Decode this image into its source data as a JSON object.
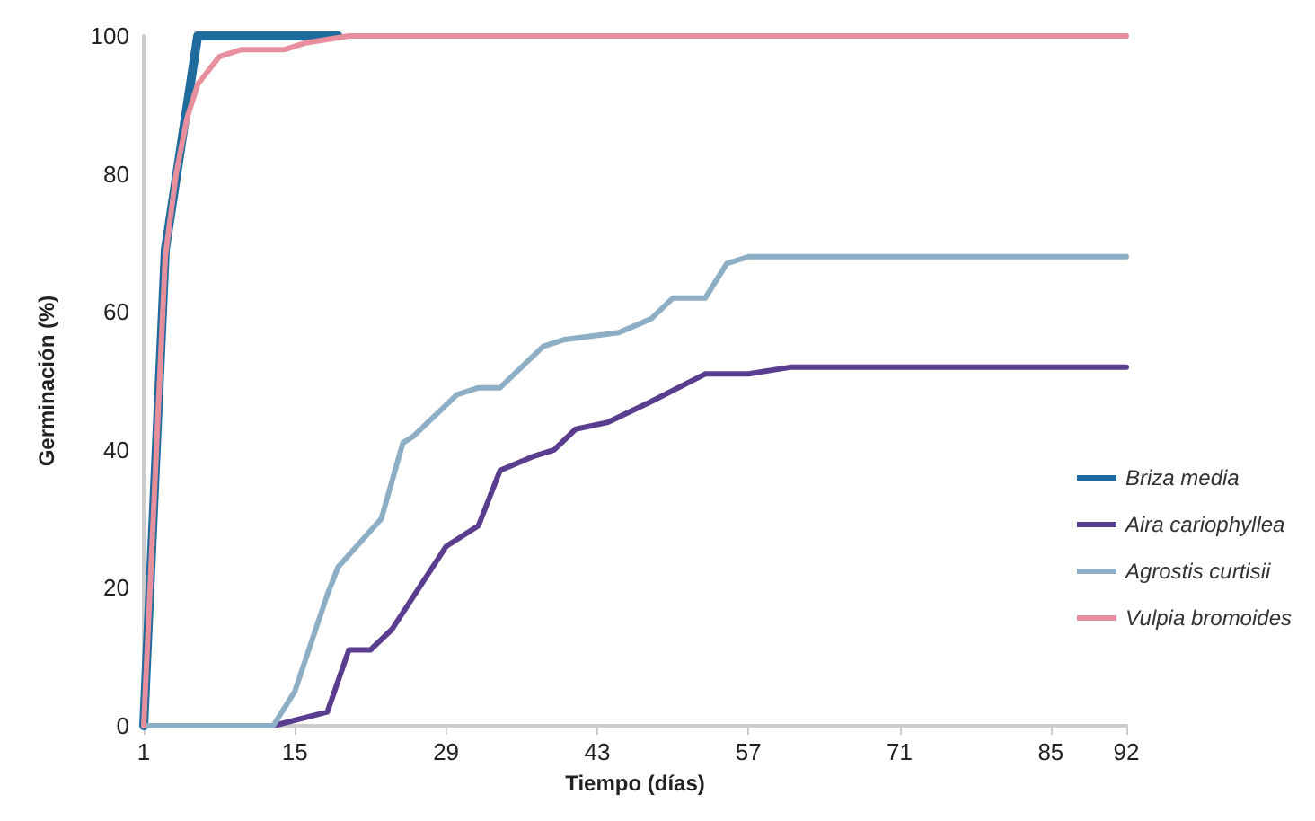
{
  "chart_data": {
    "type": "line",
    "xlabel": "Tiempo (días)",
    "ylabel": "Germinación (%)",
    "xlim": [
      1,
      92
    ],
    "xticks": [
      1,
      15,
      29,
      43,
      57,
      71,
      85,
      92
    ],
    "ylim": [
      0,
      100
    ],
    "yticks": [
      0,
      20,
      40,
      60,
      80,
      100
    ],
    "grid": false,
    "legend": "right",
    "marker": "none",
    "line_style": "solid",
    "series": [
      {
        "name": "Briza media",
        "color": "#1f6b9e",
        "x": [
          1,
          3,
          6,
          19
        ],
        "values": [
          0,
          69,
          100,
          100
        ]
      },
      {
        "name": "Aira cariophyllea",
        "color": "#5a3d8f",
        "x": [
          1,
          13,
          18,
          20,
          22,
          24,
          29,
          32,
          34,
          37,
          39,
          41,
          44,
          48,
          53,
          57,
          61,
          92
        ],
        "values": [
          0,
          0,
          2,
          11,
          11,
          14,
          26,
          29,
          37,
          39,
          40,
          43,
          44,
          47,
          51,
          51,
          52,
          52
        ]
      },
      {
        "name": "Agrostis curtisii",
        "color": "#8eaec6",
        "x": [
          1,
          13,
          15,
          18,
          19,
          23,
          25,
          26,
          30,
          32,
          34,
          38,
          40,
          45,
          48,
          50,
          53,
          55,
          57,
          92
        ],
        "values": [
          0,
          0,
          5,
          19,
          23,
          30,
          41,
          42,
          48,
          49,
          49,
          55,
          56,
          57,
          59,
          62,
          62,
          67,
          68,
          68
        ]
      },
      {
        "name": "Vulpia bromoides",
        "color": "#e88f9d",
        "x": [
          1,
          3,
          4,
          5,
          6,
          8,
          10,
          14,
          16,
          20,
          92
        ],
        "values": [
          0,
          68,
          80,
          88,
          93,
          97,
          98,
          98,
          99,
          100,
          100
        ]
      }
    ]
  }
}
